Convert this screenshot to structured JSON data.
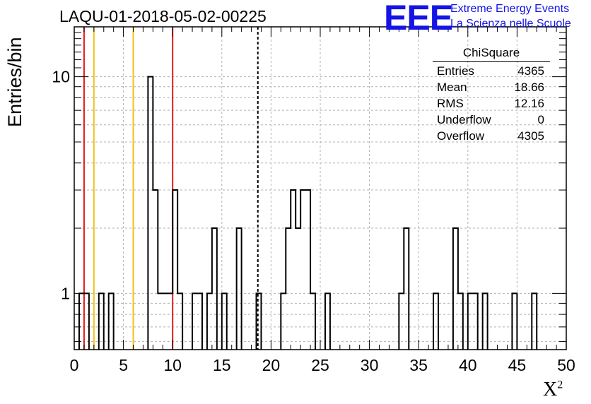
{
  "title": "LAQU-01-2018-05-02-00225",
  "logo": {
    "letters": "EEE",
    "line1": "Extreme Energy Events",
    "line2": "La Scienza nelle Scuole",
    "color": "#1414e6"
  },
  "stats": {
    "title": "ChiSquare",
    "rows": [
      {
        "label": "Entries",
        "value": "4365"
      },
      {
        "label": "Mean",
        "value": "18.66"
      },
      {
        "label": "RMS",
        "value": "12.16"
      },
      {
        "label": "Underflow",
        "value": "0"
      },
      {
        "label": "Overflow",
        "value": "4305"
      }
    ]
  },
  "chart_data": {
    "type": "histogram",
    "xlabel": "X",
    "xlabel_sup": "2",
    "ylabel": "Entries/bin",
    "xlim": [
      0,
      50
    ],
    "ylim": [
      0.55,
      17
    ],
    "log_y": true,
    "grid": true,
    "bin_width": 0.5,
    "x_ticks": [
      0,
      5,
      10,
      15,
      20,
      25,
      30,
      35,
      40,
      45,
      50
    ],
    "y_ticks": [
      1,
      10
    ],
    "bins": [
      {
        "x": 0.5,
        "y": 1
      },
      {
        "x": 1.0,
        "y": 1
      },
      {
        "x": 2.5,
        "y": 1
      },
      {
        "x": 3.5,
        "y": 1
      },
      {
        "x": 7.5,
        "y": 10
      },
      {
        "x": 8.0,
        "y": 3
      },
      {
        "x": 8.5,
        "y": 1
      },
      {
        "x": 9.0,
        "y": 1
      },
      {
        "x": 9.5,
        "y": 1
      },
      {
        "x": 10.0,
        "y": 3
      },
      {
        "x": 10.5,
        "y": 1
      },
      {
        "x": 12.0,
        "y": 1
      },
      {
        "x": 12.5,
        "y": 1
      },
      {
        "x": 13.5,
        "y": 1
      },
      {
        "x": 14.0,
        "y": 2
      },
      {
        "x": 15.0,
        "y": 1
      },
      {
        "x": 16.5,
        "y": 2
      },
      {
        "x": 18.5,
        "y": 1
      },
      {
        "x": 21.0,
        "y": 1
      },
      {
        "x": 21.5,
        "y": 2
      },
      {
        "x": 22.0,
        "y": 3
      },
      {
        "x": 22.5,
        "y": 2
      },
      {
        "x": 23.0,
        "y": 3
      },
      {
        "x": 23.5,
        "y": 3
      },
      {
        "x": 24.0,
        "y": 1
      },
      {
        "x": 25.5,
        "y": 1
      },
      {
        "x": 33.0,
        "y": 1
      },
      {
        "x": 33.5,
        "y": 2
      },
      {
        "x": 36.5,
        "y": 1
      },
      {
        "x": 38.5,
        "y": 2
      },
      {
        "x": 39.0,
        "y": 1
      },
      {
        "x": 40.0,
        "y": 1
      },
      {
        "x": 40.5,
        "y": 1
      },
      {
        "x": 41.5,
        "y": 1
      },
      {
        "x": 44.5,
        "y": 1
      },
      {
        "x": 46.5,
        "y": 1
      }
    ],
    "vertical_lines": [
      {
        "x": 1,
        "color": "#e01919",
        "style": "solid"
      },
      {
        "x": 2,
        "color": "#f2c21a",
        "style": "solid"
      },
      {
        "x": 6,
        "color": "#f2c21a",
        "style": "solid"
      },
      {
        "x": 10,
        "color": "#e01919",
        "style": "solid"
      },
      {
        "x": 18.66,
        "color": "#000000",
        "style": "dashed"
      }
    ]
  }
}
